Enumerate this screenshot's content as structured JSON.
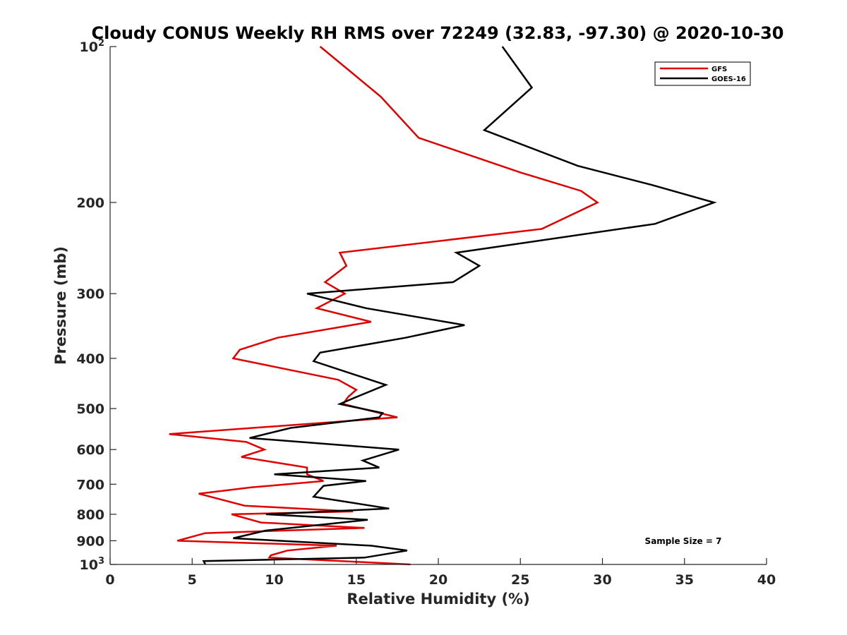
{
  "chart_data": {
    "type": "line",
    "title": "Cloudy CONUS Weekly RH RMS over 72249 (32.83, -97.30) @ 2020-10-30",
    "xlabel": "Relative Humidity (%)",
    "ylabel": "Pressure (mb)",
    "xlim": [
      0,
      40
    ],
    "ylim": [
      100,
      1000
    ],
    "y_scale": "log",
    "y_reversed": true,
    "grid": false,
    "legend_position": "top-right",
    "x_ticks": [
      0,
      5,
      10,
      15,
      20,
      25,
      30,
      35,
      40
    ],
    "y_ticks": [
      {
        "value": 100,
        "base": "10",
        "exp": "2"
      },
      {
        "value": 200,
        "label": "200"
      },
      {
        "value": 300,
        "label": "300"
      },
      {
        "value": 400,
        "label": "400"
      },
      {
        "value": 500,
        "label": "500"
      },
      {
        "value": 600,
        "label": "600"
      },
      {
        "value": 700,
        "label": "700"
      },
      {
        "value": 800,
        "label": "800"
      },
      {
        "value": 900,
        "label": "900"
      },
      {
        "value": 1000,
        "base": "10",
        "exp": "3"
      }
    ],
    "annotation": "Sample Size = 7",
    "series": [
      {
        "name": "GFS",
        "color": "#e00000",
        "points": [
          [
            12.8,
            100
          ],
          [
            16.5,
            125
          ],
          [
            18.8,
            150
          ],
          [
            25.0,
            175
          ],
          [
            28.7,
            190
          ],
          [
            29.7,
            200
          ],
          [
            26.3,
            225
          ],
          [
            14.0,
            250
          ],
          [
            14.4,
            265
          ],
          [
            13.1,
            285
          ],
          [
            14.3,
            300
          ],
          [
            12.6,
            320
          ],
          [
            15.9,
            340
          ],
          [
            10.2,
            365
          ],
          [
            7.9,
            385
          ],
          [
            7.5,
            400
          ],
          [
            13.9,
            440
          ],
          [
            15.0,
            460
          ],
          [
            14.5,
            475
          ],
          [
            14.2,
            490
          ],
          [
            17.5,
            520
          ],
          [
            3.6,
            560
          ],
          [
            8.3,
            580
          ],
          [
            9.4,
            600
          ],
          [
            8.0,
            620
          ],
          [
            12.0,
            650
          ],
          [
            12.0,
            670
          ],
          [
            13.0,
            690
          ],
          [
            8.6,
            710
          ],
          [
            5.4,
            730
          ],
          [
            8.2,
            770
          ],
          [
            14.8,
            790
          ],
          [
            7.4,
            800
          ],
          [
            9.2,
            830
          ],
          [
            15.5,
            850
          ],
          [
            5.8,
            870
          ],
          [
            4.1,
            900
          ],
          [
            13.8,
            920
          ],
          [
            10.8,
            940
          ],
          [
            9.8,
            960
          ],
          [
            9.7,
            970
          ],
          [
            18.3,
            1000
          ]
        ]
      },
      {
        "name": "GOES-16",
        "color": "#000000",
        "points": [
          [
            23.9,
            100
          ],
          [
            25.7,
            120
          ],
          [
            22.8,
            145
          ],
          [
            28.5,
            170
          ],
          [
            33.0,
            185
          ],
          [
            36.8,
            200
          ],
          [
            33.2,
            220
          ],
          [
            21.1,
            250
          ],
          [
            22.5,
            265
          ],
          [
            20.9,
            285
          ],
          [
            12.0,
            300
          ],
          [
            15.6,
            320
          ],
          [
            21.6,
            345
          ],
          [
            18.0,
            365
          ],
          [
            12.8,
            390
          ],
          [
            12.4,
            405
          ],
          [
            16.8,
            450
          ],
          [
            15.0,
            475
          ],
          [
            14.0,
            490
          ],
          [
            16.6,
            510
          ],
          [
            16.4,
            520
          ],
          [
            11.0,
            545
          ],
          [
            8.5,
            570
          ],
          [
            14.6,
            590
          ],
          [
            17.6,
            600
          ],
          [
            15.4,
            630
          ],
          [
            16.4,
            650
          ],
          [
            10.0,
            670
          ],
          [
            15.6,
            690
          ],
          [
            13.0,
            705
          ],
          [
            12.4,
            740
          ],
          [
            17.0,
            780
          ],
          [
            9.5,
            800
          ],
          [
            15.7,
            820
          ],
          [
            9.5,
            860
          ],
          [
            7.5,
            890
          ],
          [
            15.9,
            920
          ],
          [
            18.1,
            940
          ],
          [
            15.5,
            970
          ],
          [
            5.7,
            985
          ],
          [
            5.8,
            1000
          ]
        ]
      }
    ]
  }
}
